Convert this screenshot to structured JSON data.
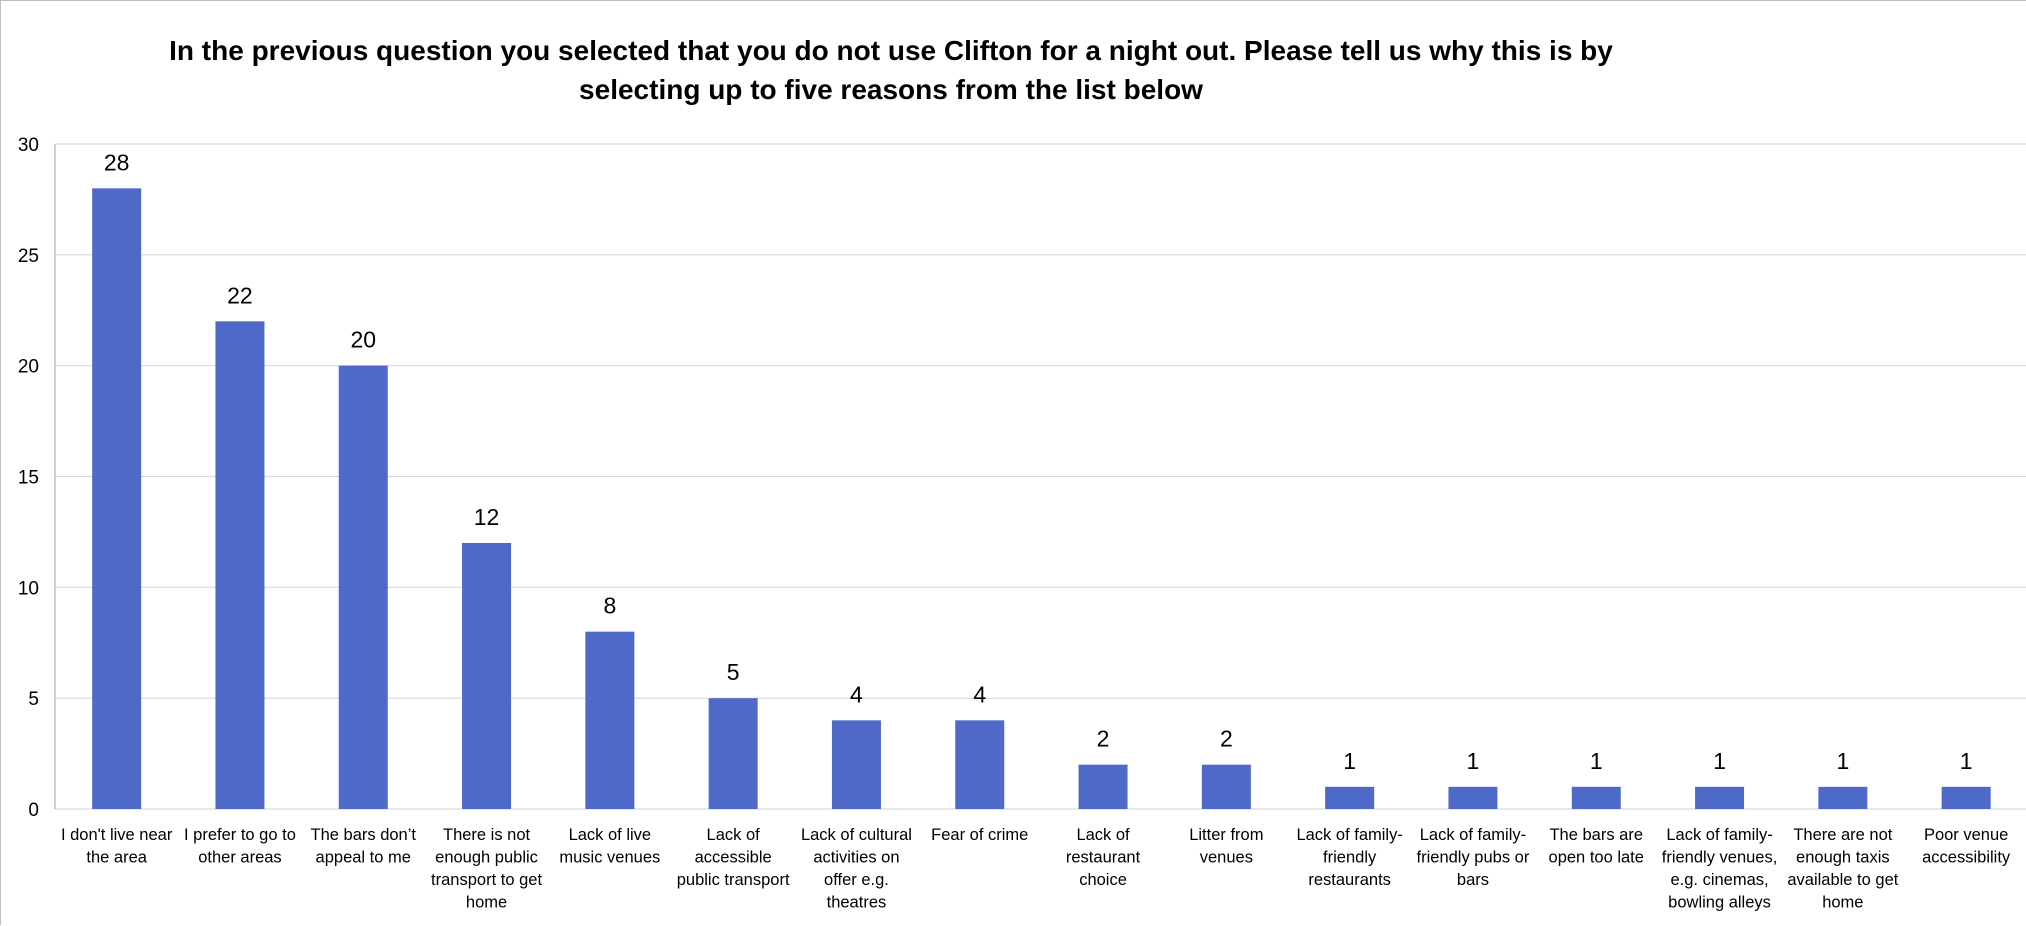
{
  "chart_data": {
    "type": "bar",
    "title": "In the previous question you selected that you do not use Clifton for a night out. Please tell us why this is by selecting up to five reasons from the list below",
    "xlabel": "",
    "ylabel": "",
    "ylim": [
      0,
      30
    ],
    "yticks": [
      "0",
      "5",
      "10",
      "15",
      "20",
      "25",
      "30"
    ],
    "grid": true,
    "legend": "none",
    "bar_color": "#4F69C9",
    "categories": [
      [
        "I don't live near",
        "the area"
      ],
      [
        "I prefer to go to",
        "other areas"
      ],
      [
        "The bars don’t",
        "appeal to me"
      ],
      [
        "There is not",
        "enough public",
        "transport to get",
        "home"
      ],
      [
        "Lack of live",
        "music venues"
      ],
      [
        "Lack of",
        "accessible",
        "public transport"
      ],
      [
        "Lack of cultural",
        "activities on",
        "offer e.g.",
        "theatres"
      ],
      [
        "Fear of crime"
      ],
      [
        "Lack of",
        "restaurant",
        "choice"
      ],
      [
        "Litter from",
        "venues"
      ],
      [
        "Lack of family-",
        "friendly",
        "restaurants"
      ],
      [
        "Lack of family-",
        "friendly pubs or",
        "bars"
      ],
      [
        "The bars are",
        "open too late"
      ],
      [
        "Lack of family-",
        "friendly venues,",
        "e.g. cinemas,",
        "bowling alleys"
      ],
      [
        "There are not",
        "enough taxis",
        "available to get",
        "home"
      ],
      [
        "Poor venue",
        "accessibility"
      ]
    ],
    "values": [
      28,
      22,
      20,
      12,
      8,
      5,
      4,
      4,
      2,
      2,
      1,
      1,
      1,
      1,
      1,
      1
    ],
    "data_labels": [
      "28",
      "22",
      "20",
      "12",
      "8",
      "5",
      "4",
      "4",
      "2",
      "2",
      "1",
      "1",
      "1",
      "1",
      "1",
      "1"
    ]
  }
}
